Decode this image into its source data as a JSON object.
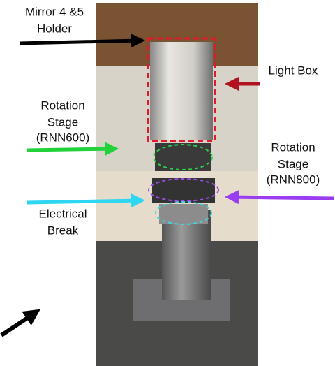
{
  "labels": [
    {
      "lines": [
        "Mirror 4 &5",
        "Holder"
      ]
    },
    {
      "lines": [
        "Light Box"
      ]
    },
    {
      "lines": [
        "Rotation",
        "Stage",
        "(RNN600)"
      ]
    },
    {
      "lines": [
        "Rotation",
        "Stage",
        "(RNN800)"
      ]
    },
    {
      "lines": [
        "Electrical",
        "Break"
      ]
    }
  ]
}
